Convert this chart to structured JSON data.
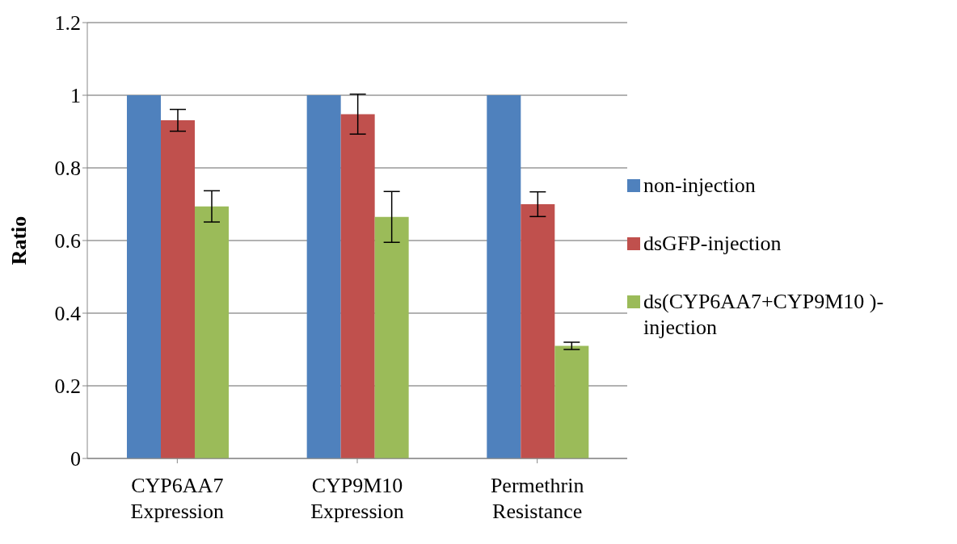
{
  "chart_data": {
    "type": "bar",
    "ylabel": "Ratio",
    "categories": [
      "CYP6AA7 Expression",
      "CYP9M10 Expression",
      "Permethrin Resistance"
    ],
    "series": [
      {
        "name": "non-injection",
        "color": "#4f81bd",
        "values": [
          1,
          1,
          1
        ]
      },
      {
        "name": "dsGFP-injection",
        "color": "#c0504d",
        "values": [
          0.931,
          0.948,
          0.7
        ],
        "errors": [
          0.03,
          0.055,
          0.034
        ]
      },
      {
        "name": "ds(CYP6AA7+CYP9M10 )-injection",
        "color": "#9bbb59",
        "values": [
          0.694,
          0.665,
          0.31
        ],
        "errors": [
          0.043,
          0.07,
          0.01
        ]
      }
    ],
    "ylim": [
      0,
      1.2
    ],
    "yticks": [
      0,
      0.2,
      0.4,
      0.6,
      0.8,
      1,
      1.2
    ],
    "grid": "y",
    "legend": "right"
  }
}
